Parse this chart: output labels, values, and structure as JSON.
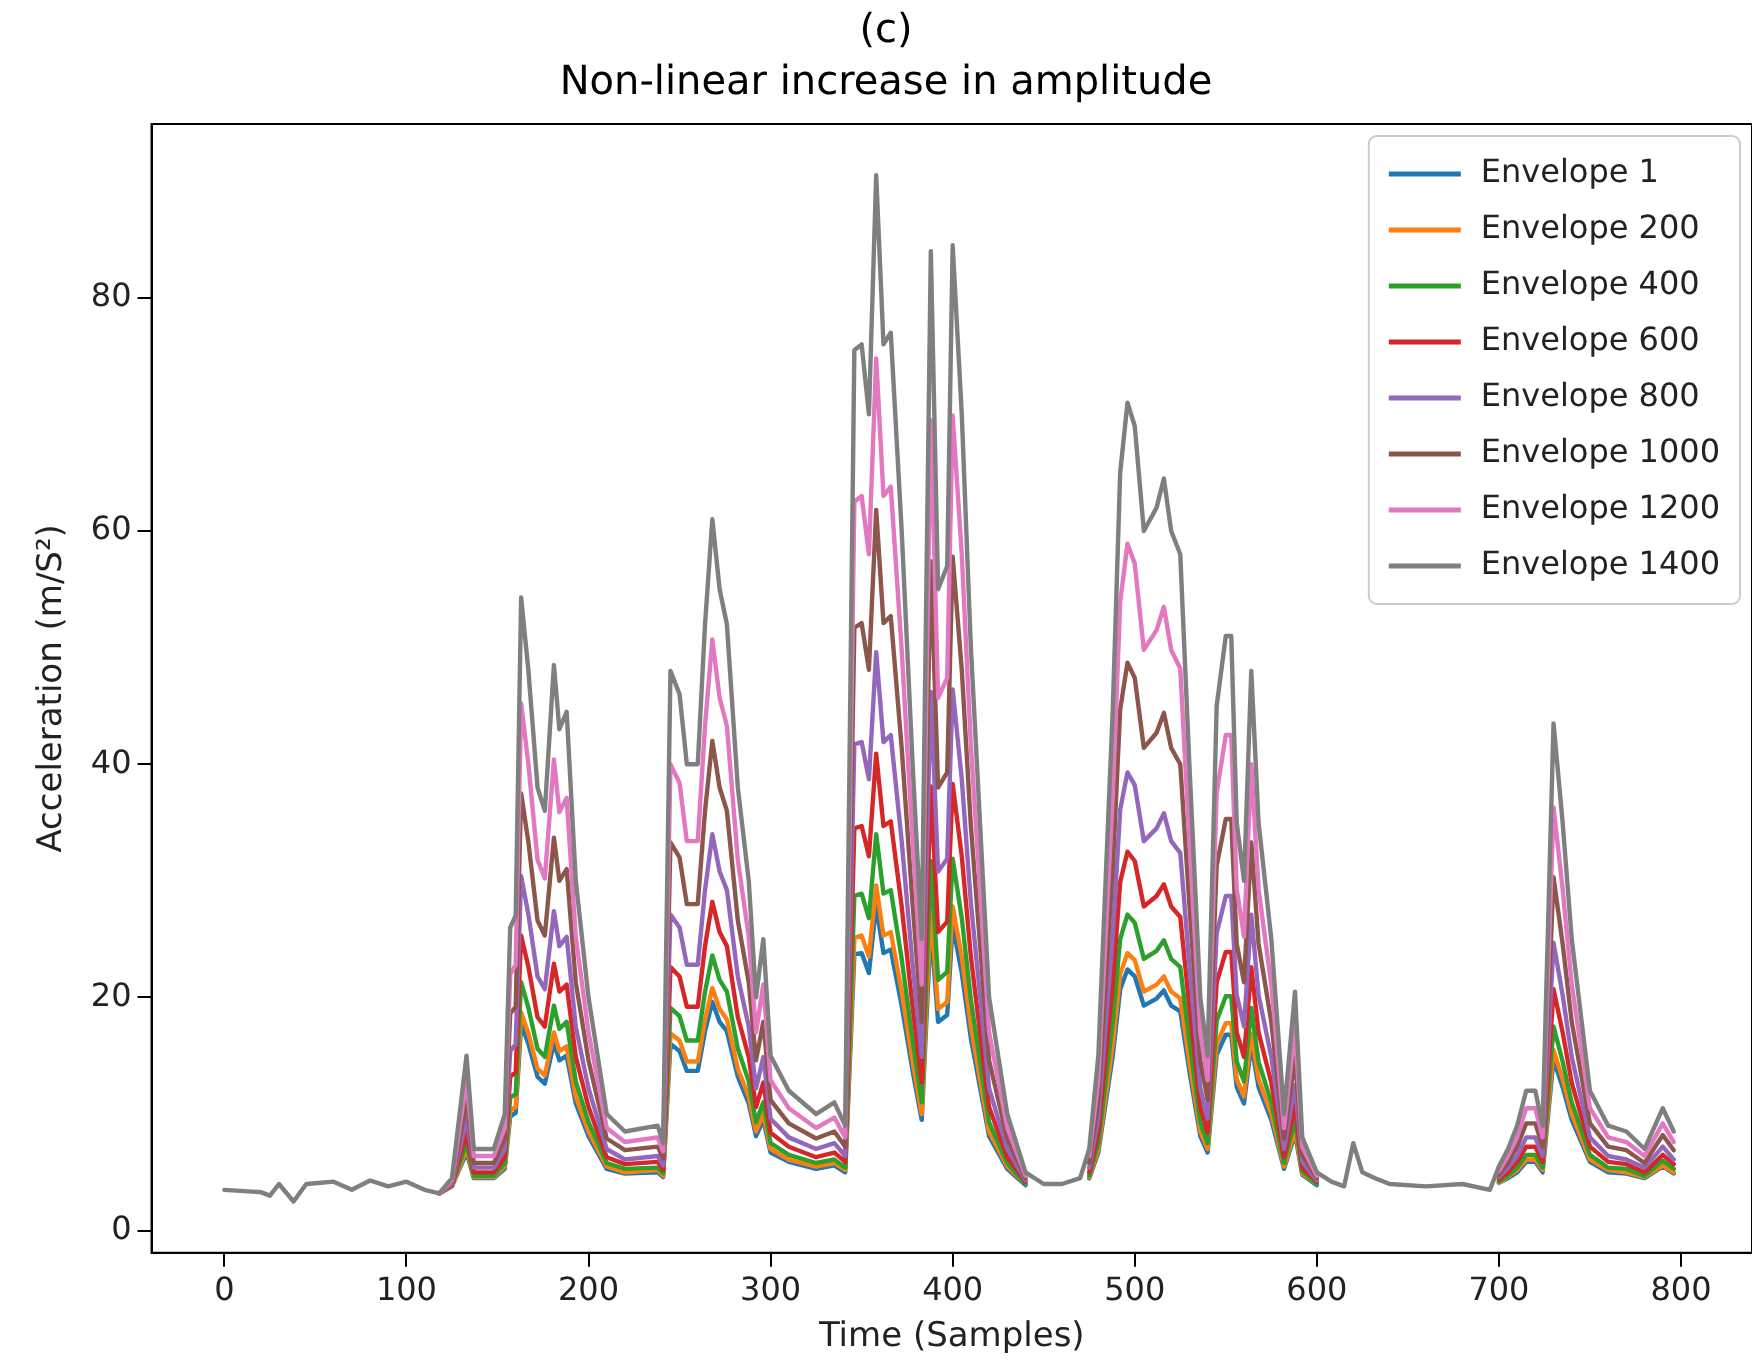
{
  "chart_data": {
    "type": "line",
    "title": "(c)",
    "subtitle": "Non-linear increase in amplitude",
    "xlabel": "Time (Samples)",
    "ylabel": "Acceleration (m/S²)",
    "x": [
      0,
      20,
      25,
      30,
      38,
      45,
      60,
      70,
      80,
      90,
      100,
      110,
      118,
      125,
      133,
      137,
      148,
      154,
      157,
      160,
      163,
      167,
      172,
      176,
      181,
      184,
      188,
      193,
      200,
      210,
      220,
      238,
      241,
      245,
      250,
      254,
      260,
      264,
      268,
      272,
      276,
      282,
      288,
      292,
      296,
      300,
      310,
      325,
      335,
      341,
      346,
      350,
      354,
      358,
      362,
      366,
      372,
      378,
      383,
      388,
      392,
      397,
      400,
      405,
      410,
      415,
      420,
      430,
      440,
      450,
      460,
      470,
      475,
      480,
      488,
      492,
      496,
      500,
      505,
      512,
      516,
      520,
      525,
      530,
      536,
      540,
      545,
      550,
      553,
      556,
      560,
      564,
      568,
      575,
      582,
      588,
      592,
      600,
      608,
      615,
      620,
      625,
      632,
      640,
      660,
      680,
      695,
      700,
      705,
      710,
      715,
      720,
      724,
      730,
      735,
      740,
      750,
      760,
      770,
      780,
      790,
      796
    ],
    "series": [
      {
        "name": "Envelope 1",
        "color": "#1f77b4",
        "values": [
          null,
          null,
          null,
          null,
          null,
          null,
          null,
          null,
          null,
          null,
          null,
          null,
          3.2,
          3.8,
          6.7,
          4.5,
          4.5,
          5.3,
          9.8,
          10.1,
          17.7,
          16.0,
          13.2,
          12.6,
          16.1,
          14.6,
          15.0,
          10.9,
          8.1,
          5.3,
          4.9,
          5.0,
          4.6,
          16.0,
          15.4,
          13.7,
          13.7,
          17.1,
          19.6,
          17.9,
          17.1,
          13.2,
          10.9,
          8.1,
          9.5,
          6.7,
          5.9,
          5.3,
          5.6,
          5.0,
          23.7,
          23.8,
          22.1,
          27.9,
          23.8,
          24.1,
          19.3,
          13.7,
          9.5,
          26.0,
          17.9,
          18.5,
          26.2,
          22.1,
          16.5,
          12.3,
          8.1,
          5.3,
          3.9,
          null,
          null,
          null,
          4.5,
          6.7,
          15.1,
          20.7,
          22.4,
          21.8,
          19.3,
          19.9,
          20.6,
          19.3,
          18.8,
          13.7,
          8.1,
          6.7,
          15.1,
          16.8,
          16.8,
          12.3,
          10.9,
          16.0,
          12.3,
          9.5,
          5.3,
          8.3,
          4.8,
          3.9,
          null,
          null,
          null,
          null,
          null,
          null,
          null,
          null,
          null,
          4.1,
          4.5,
          5.0,
          5.9,
          5.9,
          5.0,
          14.7,
          12.3,
          9.5,
          5.9,
          5.0,
          4.9,
          4.5,
          5.5,
          4.9
        ]
      },
      {
        "name": "Envelope 200",
        "color": "#ff7f0e",
        "values": [
          null,
          null,
          null,
          null,
          null,
          null,
          null,
          null,
          null,
          null,
          null,
          null,
          3.2,
          3.8,
          7.0,
          4.6,
          4.6,
          5.5,
          10.3,
          10.6,
          18.7,
          16.9,
          13.9,
          13.3,
          17.0,
          15.4,
          15.8,
          11.5,
          8.5,
          5.5,
          5.0,
          5.2,
          4.7,
          16.9,
          16.3,
          14.5,
          14.5,
          18.1,
          20.8,
          19.0,
          18.1,
          13.9,
          11.5,
          8.5,
          10.0,
          7.0,
          6.1,
          5.5,
          5.8,
          5.2,
          25.1,
          25.3,
          23.5,
          29.6,
          25.3,
          25.6,
          20.5,
          14.5,
          10.0,
          27.7,
          19.0,
          19.6,
          27.8,
          23.5,
          17.5,
          13.0,
          8.5,
          5.5,
          4.0,
          null,
          null,
          null,
          4.6,
          7.0,
          16.0,
          22.0,
          23.8,
          23.2,
          20.5,
          21.1,
          21.8,
          20.5,
          19.9,
          14.5,
          8.5,
          7.0,
          16.0,
          17.8,
          17.8,
          13.0,
          11.5,
          16.9,
          13.0,
          10.0,
          5.5,
          8.6,
          4.9,
          4.0,
          null,
          null,
          null,
          null,
          null,
          null,
          null,
          null,
          null,
          4.1,
          4.6,
          5.2,
          6.1,
          6.1,
          5.2,
          15.5,
          13.0,
          10.0,
          6.1,
          5.2,
          5.0,
          4.6,
          5.6,
          5.0
        ]
      },
      {
        "name": "Envelope 400",
        "color": "#2ca02c",
        "values": [
          null,
          null,
          null,
          null,
          null,
          null,
          null,
          null,
          null,
          null,
          null,
          null,
          3.2,
          3.9,
          7.5,
          4.7,
          4.7,
          5.8,
          11.4,
          11.7,
          21.3,
          19.1,
          15.6,
          14.9,
          19.3,
          17.3,
          17.9,
          12.8,
          9.3,
          5.8,
          5.3,
          5.4,
          4.9,
          19.1,
          18.4,
          16.3,
          16.3,
          20.5,
          23.6,
          21.5,
          20.5,
          15.6,
          12.8,
          9.3,
          11.0,
          7.5,
          6.5,
          5.8,
          6.1,
          5.4,
          28.7,
          28.9,
          26.8,
          34.0,
          28.9,
          29.2,
          23.3,
          16.3,
          11.0,
          31.7,
          21.5,
          22.2,
          31.9,
          26.8,
          19.8,
          14.5,
          9.3,
          5.8,
          4.0,
          null,
          null,
          null,
          4.7,
          7.5,
          18.0,
          25.0,
          27.1,
          26.4,
          23.3,
          24.0,
          24.9,
          23.3,
          22.6,
          16.3,
          9.3,
          7.5,
          18.0,
          20.1,
          20.1,
          14.5,
          12.8,
          19.1,
          14.5,
          11.0,
          5.8,
          9.5,
          5.1,
          4.0,
          null,
          null,
          null,
          null,
          null,
          null,
          null,
          null,
          null,
          4.2,
          4.7,
          5.4,
          6.5,
          6.5,
          5.4,
          17.5,
          14.5,
          11.0,
          6.5,
          5.4,
          5.3,
          4.7,
          6.0,
          5.3
        ]
      },
      {
        "name": "Envelope 600",
        "color": "#d62728",
        "values": [
          null,
          null,
          null,
          null,
          null,
          null,
          null,
          null,
          null,
          null,
          null,
          null,
          3.2,
          3.9,
          8.4,
          5.0,
          5.0,
          6.3,
          13.2,
          13.6,
          25.3,
          22.6,
          18.3,
          17.5,
          22.9,
          20.5,
          21.1,
          14.9,
          10.6,
          6.3,
          5.7,
          5.9,
          5.2,
          22.6,
          21.8,
          19.2,
          19.2,
          24.4,
          28.2,
          25.6,
          24.4,
          18.3,
          14.9,
          10.6,
          12.7,
          8.4,
          7.2,
          6.3,
          6.7,
          5.9,
          34.5,
          34.7,
          32.1,
          40.9,
          34.7,
          35.1,
          27.8,
          19.2,
          12.7,
          38.1,
          25.6,
          26.5,
          38.3,
          32.1,
          23.5,
          17.0,
          10.6,
          6.3,
          4.2,
          null,
          null,
          null,
          5.0,
          8.4,
          21.3,
          29.9,
          32.5,
          31.7,
          27.8,
          28.7,
          29.7,
          27.8,
          26.9,
          19.2,
          10.6,
          8.4,
          21.3,
          23.9,
          23.9,
          17.0,
          14.9,
          22.6,
          17.0,
          12.7,
          6.3,
          10.8,
          5.4,
          4.2,
          null,
          null,
          null,
          null,
          null,
          null,
          null,
          null,
          null,
          4.4,
          5.0,
          5.9,
          7.2,
          7.2,
          5.9,
          20.7,
          17.0,
          12.7,
          7.2,
          5.9,
          5.7,
          5.0,
          6.5,
          5.7
        ]
      },
      {
        "name": "Envelope 800",
        "color": "#9467bd",
        "values": [
          null,
          null,
          null,
          null,
          null,
          null,
          null,
          null,
          null,
          null,
          null,
          null,
          3.2,
          4.0,
          9.6,
          5.4,
          5.4,
          7.0,
          15.4,
          16.0,
          30.4,
          27.1,
          21.8,
          20.7,
          27.4,
          24.4,
          25.2,
          17.5,
          12.2,
          7.0,
          6.1,
          6.4,
          5.6,
          27.1,
          26.0,
          22.8,
          22.8,
          29.2,
          34.0,
          30.8,
          29.2,
          21.8,
          17.5,
          12.2,
          14.9,
          9.6,
          8.0,
          7.0,
          7.5,
          6.4,
          41.7,
          41.9,
          38.7,
          49.6,
          41.9,
          42.5,
          33.4,
          22.8,
          14.9,
          46.2,
          30.8,
          31.9,
          46.4,
          38.7,
          28.1,
          20.2,
          12.2,
          7.0,
          4.3,
          null,
          null,
          null,
          5.4,
          9.6,
          25.5,
          36.1,
          39.3,
          38.2,
          33.4,
          34.5,
          35.8,
          33.4,
          32.4,
          22.8,
          12.2,
          9.6,
          25.5,
          28.7,
          28.7,
          20.2,
          17.5,
          27.1,
          20.2,
          14.9,
          7.0,
          12.5,
          5.9,
          4.3,
          null,
          null,
          null,
          null,
          null,
          null,
          null,
          null,
          null,
          4.6,
          5.4,
          6.4,
          8.0,
          8.0,
          6.4,
          24.7,
          20.2,
          14.9,
          8.0,
          6.4,
          6.1,
          5.4,
          7.2,
          6.1
        ]
      },
      {
        "name": "Envelope 1000",
        "color": "#8c564b",
        "values": [
          null,
          null,
          null,
          null,
          null,
          null,
          null,
          null,
          null,
          null,
          null,
          null,
          3.2,
          4.2,
          11.2,
          5.8,
          5.8,
          7.9,
          18.6,
          19.2,
          37.5,
          33.3,
          26.6,
          25.3,
          33.7,
          30.0,
          31.0,
          21.3,
          14.6,
          7.9,
          6.9,
          7.2,
          6.2,
          33.3,
          32.0,
          28.0,
          28.0,
          36.0,
          42.0,
          38.0,
          36.0,
          26.6,
          21.3,
          14.6,
          17.9,
          11.2,
          9.2,
          7.9,
          8.5,
          7.2,
          51.7,
          52.1,
          48.1,
          61.8,
          52.1,
          52.7,
          41.4,
          28.0,
          17.9,
          57.4,
          38.0,
          39.3,
          57.8,
          48.1,
          34.7,
          24.6,
          14.6,
          7.9,
          4.5,
          null,
          null,
          null,
          5.8,
          11.2,
          31.3,
          44.7,
          48.7,
          47.4,
          41.4,
          42.7,
          44.4,
          41.4,
          40.0,
          28.0,
          14.6,
          11.2,
          31.3,
          35.3,
          35.3,
          24.6,
          21.3,
          33.3,
          24.6,
          17.9,
          7.9,
          14.9,
          6.5,
          4.5,
          null,
          null,
          null,
          null,
          null,
          null,
          null,
          null,
          null,
          4.8,
          5.8,
          7.2,
          9.2,
          9.2,
          7.2,
          30.3,
          24.6,
          17.9,
          9.2,
          7.2,
          6.9,
          5.8,
          8.2,
          6.9
        ]
      },
      {
        "name": "Envelope 1200",
        "color": "#e377c2",
        "values": [
          null,
          null,
          null,
          null,
          null,
          null,
          null,
          null,
          null,
          null,
          null,
          null,
          3.2,
          4.3,
          12.9,
          6.4,
          6.4,
          8.8,
          22.0,
          22.8,
          45.2,
          40.0,
          31.8,
          30.2,
          40.4,
          35.9,
          37.1,
          25.2,
          17.0,
          8.8,
          7.6,
          8.0,
          6.8,
          40.0,
          38.4,
          33.4,
          33.4,
          43.3,
          50.7,
          45.7,
          43.3,
          31.8,
          25.2,
          17.0,
          21.1,
          12.9,
          10.5,
          8.8,
          9.7,
          8.0,
          62.5,
          63.0,
          58.0,
          74.8,
          63.0,
          63.8,
          49.8,
          33.4,
          21.1,
          69.5,
          45.7,
          47.4,
          69.9,
          58.0,
          41.6,
          29.3,
          17.0,
          8.8,
          4.7,
          null,
          null,
          null,
          6.4,
          12.9,
          37.5,
          53.9,
          58.9,
          57.2,
          49.8,
          51.5,
          53.5,
          49.8,
          48.2,
          33.4,
          17.0,
          12.9,
          37.5,
          42.5,
          42.5,
          29.3,
          25.2,
          40.0,
          29.3,
          21.1,
          8.8,
          17.4,
          7.2,
          4.7,
          null,
          null,
          null,
          null,
          null,
          null,
          null,
          null,
          null,
          5.1,
          6.4,
          8.0,
          10.5,
          10.5,
          8.0,
          36.3,
          29.3,
          21.1,
          10.5,
          8.0,
          7.6,
          6.4,
          9.2,
          7.6
        ]
      },
      {
        "name": "Envelope 1400",
        "color": "#7f7f7f",
        "values": [
          3.5,
          3.3,
          3.0,
          4.0,
          2.5,
          4.0,
          4.2,
          3.5,
          4.3,
          3.8,
          4.2,
          3.5,
          3.2,
          4.5,
          15,
          7,
          7,
          10,
          26,
          27,
          54.3,
          48,
          38,
          36,
          48.5,
          43,
          44.5,
          30,
          20,
          10,
          8.5,
          9,
          7.5,
          48,
          46,
          40,
          40,
          52,
          61,
          55,
          52,
          38,
          30,
          20,
          25,
          15,
          12,
          10,
          11,
          9,
          75.5,
          76,
          70,
          90.5,
          76,
          77,
          60,
          40,
          25,
          84,
          55,
          57,
          84.5,
          70,
          50,
          35,
          20,
          10,
          5,
          4,
          4,
          4.5,
          7,
          15,
          45,
          65,
          71,
          69,
          60,
          62,
          64.5,
          60,
          58,
          40,
          20,
          15,
          45,
          51,
          51,
          35,
          30,
          48,
          35,
          25,
          10,
          20.5,
          8,
          5,
          4.2,
          3.8,
          7.5,
          5,
          4.5,
          4,
          3.8,
          4,
          3.5,
          5.5,
          7,
          9,
          12,
          12,
          9,
          43.5,
          35,
          25,
          12,
          9,
          8.5,
          7,
          10.5,
          8.5
        ]
      }
    ],
    "xlim": [
      -40,
      839
    ],
    "ylim": [
      -1.9,
      94.9
    ],
    "xticks": [
      0,
      100,
      200,
      300,
      400,
      500,
      600,
      700,
      800
    ],
    "yticks": [
      0,
      20,
      40,
      60,
      80
    ],
    "grid": false,
    "legend": "top right"
  }
}
